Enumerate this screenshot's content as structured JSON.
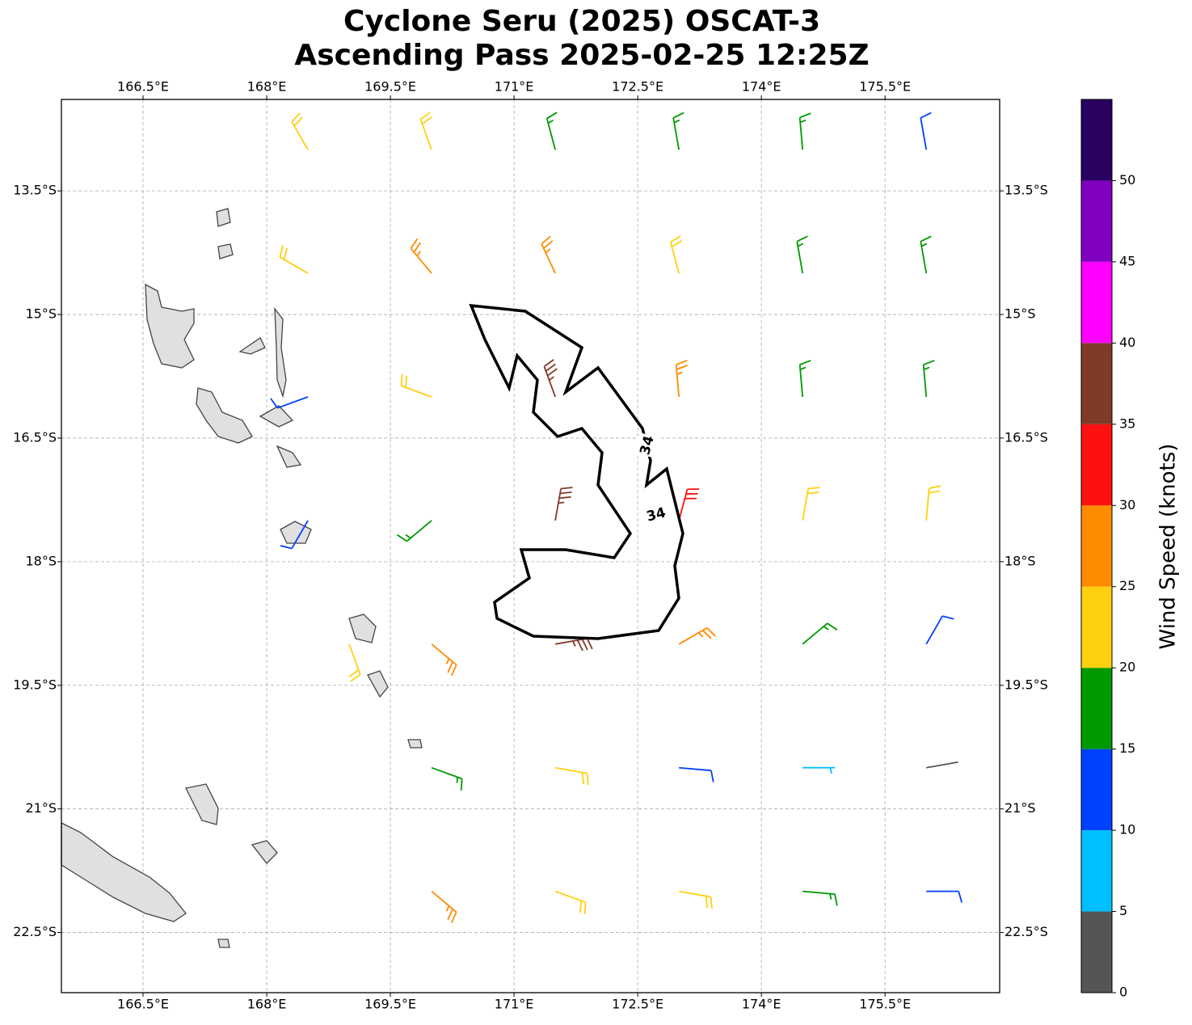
{
  "chart_data": {
    "type": "barbs",
    "title": "Cyclone Seru (2025) OSCAT-3",
    "subtitle": "Ascending Pass 2025-02-25 12:25Z",
    "xlim": [
      165.51,
      176.89
    ],
    "ylim": [
      -23.23,
      -12.39
    ],
    "xticks": [
      {
        "value": 166.5,
        "label": "166.5°E"
      },
      {
        "value": 168,
        "label": "168°E"
      },
      {
        "value": 169.5,
        "label": "169.5°E"
      },
      {
        "value": 171,
        "label": "171°E"
      },
      {
        "value": 172.5,
        "label": "172.5°E"
      },
      {
        "value": 174,
        "label": "174°E"
      },
      {
        "value": 175.5,
        "label": "175.5°E"
      }
    ],
    "yticks": [
      {
        "value": -13.5,
        "label": "13.5°S"
      },
      {
        "value": -15,
        "label": "15°S"
      },
      {
        "value": -16.5,
        "label": "16.5°S"
      },
      {
        "value": -18,
        "label": "18°S"
      },
      {
        "value": -19.5,
        "label": "19.5°S"
      },
      {
        "value": -21,
        "label": "21°S"
      },
      {
        "value": -22.5,
        "label": "22.5°S"
      }
    ],
    "grid": true,
    "contour_levels": [
      34
    ],
    "barbs": [
      [
        168.5,
        -13,
        22,
        330
      ],
      [
        170,
        -13,
        23,
        340
      ],
      [
        171.5,
        -13,
        18,
        345
      ],
      [
        173,
        -13,
        17,
        350
      ],
      [
        174.5,
        -13,
        16,
        355
      ],
      [
        176,
        -13,
        12,
        350
      ],
      [
        168.5,
        -14.5,
        22,
        300
      ],
      [
        170,
        -14.5,
        27,
        320
      ],
      [
        171.5,
        -14.5,
        28,
        335
      ],
      [
        173,
        -14.5,
        23,
        345
      ],
      [
        174.5,
        -14.5,
        18,
        350
      ],
      [
        176,
        -14.5,
        16,
        350
      ],
      [
        168.5,
        -16,
        13,
        250
      ],
      [
        170,
        -16,
        21,
        290
      ],
      [
        171.5,
        -16,
        37,
        340
      ],
      [
        173,
        -16,
        27,
        355
      ],
      [
        174.5,
        -16,
        19,
        355
      ],
      [
        176,
        -16,
        16,
        355
      ],
      [
        168.5,
        -17.5,
        12,
        210
      ],
      [
        170,
        -17.5,
        17,
        230
      ],
      [
        171.5,
        -17.5,
        37,
        10
      ],
      [
        173,
        -17.5,
        33,
        15
      ],
      [
        174.5,
        -17.5,
        22,
        10
      ],
      [
        176,
        -17.5,
        21,
        5
      ],
      [
        169,
        -19,
        21,
        160
      ],
      [
        170,
        -19,
        26,
        130
      ],
      [
        171.5,
        -19,
        36,
        80
      ],
      [
        173,
        -19,
        28,
        60
      ],
      [
        174.5,
        -19,
        17,
        50
      ],
      [
        176,
        -19,
        12,
        30
      ],
      [
        170,
        -20.5,
        18,
        110
      ],
      [
        171.5,
        -20.5,
        22,
        100
      ],
      [
        173,
        -20.5,
        13,
        95
      ],
      [
        174.5,
        -20.5,
        8,
        90
      ],
      [
        176,
        -20.5,
        4,
        80
      ],
      [
        170,
        -22,
        26,
        130
      ],
      [
        171.5,
        -22,
        24,
        110
      ],
      [
        173,
        -22,
        22,
        100
      ],
      [
        174.5,
        -22,
        18,
        95
      ],
      [
        176,
        -22,
        12,
        90
      ]
    ],
    "colorbar": {
      "label": "Wind Speed (knots)",
      "bounds": [
        0,
        5,
        10,
        15,
        20,
        25,
        30,
        35,
        40,
        45,
        50,
        55
      ],
      "colors": [
        "#555555",
        "#00bfff",
        "#0040ff",
        "#009900",
        "#ffd010",
        "#ff8c00",
        "#ff1010",
        "#7f3a28",
        "#ff00ff",
        "#8000c0",
        "#2a0060"
      ],
      "ticks": [
        0,
        5,
        10,
        15,
        20,
        25,
        30,
        35,
        40,
        45,
        50
      ]
    }
  }
}
